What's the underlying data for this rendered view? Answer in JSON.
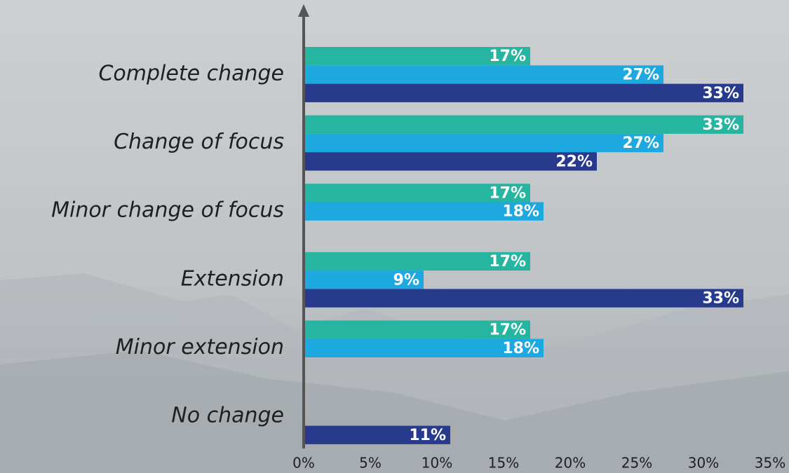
{
  "chart_data": {
    "type": "bar",
    "orientation": "horizontal",
    "categories": [
      "Complete change",
      "Change of focus",
      "Minor change of focus",
      "Extension",
      "Minor extension",
      "No change"
    ],
    "series": [
      {
        "color": "#26b5a0",
        "values": [
          17,
          33,
          17,
          17,
          17,
          null
        ],
        "value_labels": [
          "17%",
          "33%",
          "17%",
          "17%",
          "17%",
          null
        ]
      },
      {
        "color": "#1ea8e0",
        "values": [
          27,
          27,
          18,
          9,
          18,
          null
        ],
        "value_labels": [
          "27%",
          "27%",
          "18%",
          "9%",
          "18%",
          null
        ]
      },
      {
        "color": "#283a8c",
        "values": [
          33,
          22,
          null,
          33,
          null,
          11
        ],
        "value_labels": [
          "33%",
          "22%",
          null,
          "33%",
          null,
          "11%"
        ]
      }
    ],
    "xlim": [
      0,
      35
    ],
    "xticks": [
      {
        "value": 0,
        "label": "0%"
      },
      {
        "value": 5,
        "label": "5%"
      },
      {
        "value": 10,
        "label": "10%"
      },
      {
        "value": 15,
        "label": "15%"
      },
      {
        "value": 20,
        "label": "20%"
      },
      {
        "value": 25,
        "label": "25%"
      },
      {
        "value": 30,
        "label": "30%"
      },
      {
        "value": 35,
        "label": "35%"
      }
    ]
  }
}
